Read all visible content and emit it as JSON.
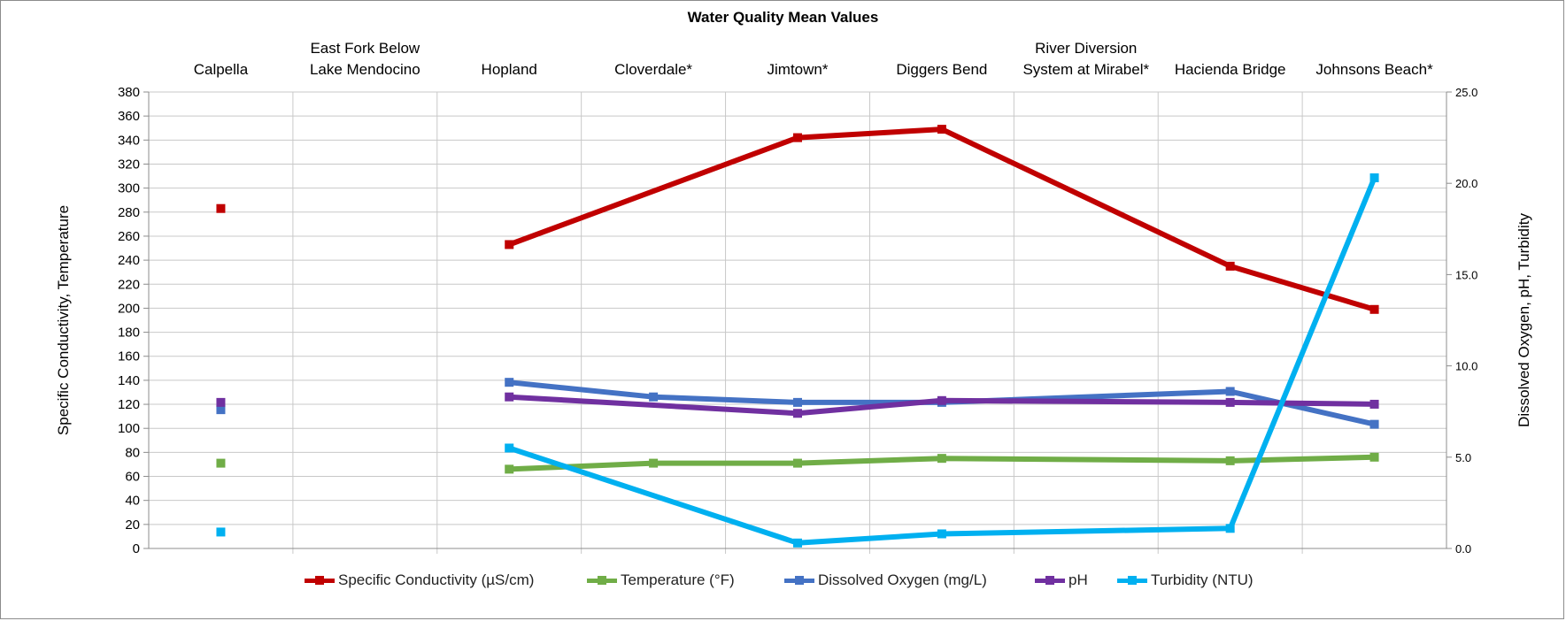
{
  "chart_data": {
    "type": "line",
    "title": "Water Quality Mean Values",
    "ylabel": "Specific Conductivity, Temperature",
    "y2label": "Dissolved Oxygen, pH, Turbidity",
    "ylim": [
      0,
      380
    ],
    "yticks": [
      0,
      20,
      40,
      60,
      80,
      100,
      120,
      140,
      160,
      180,
      200,
      220,
      240,
      260,
      280,
      300,
      320,
      340,
      360,
      380
    ],
    "y2lim": [
      0,
      25
    ],
    "y2ticks": [
      "0.0",
      "5.0",
      "10.0",
      "15.0",
      "20.0",
      "25.0"
    ],
    "grid": true,
    "legend_position": "bottom",
    "categories": [
      [
        "Calpella"
      ],
      [
        "East Fork Below",
        "Lake Mendocino"
      ],
      [
        "Hopland"
      ],
      [
        "Cloverdale*"
      ],
      [
        "Jimtown*"
      ],
      [
        "Diggers Bend"
      ],
      [
        "River Diversion",
        "System at Mirabel*"
      ],
      [
        "Hacienda Bridge"
      ],
      [
        "Johnsons Beach*"
      ]
    ],
    "series": [
      {
        "name": "Specific Conductivity (µS/cm)",
        "axis": "left",
        "color": "#C00000",
        "values": [
          283,
          null,
          253,
          null,
          342,
          349,
          null,
          235,
          199
        ]
      },
      {
        "name": "Temperature  (°F)",
        "axis": "left",
        "color": "#70AD47",
        "values": [
          71,
          null,
          66,
          71,
          71,
          75,
          null,
          73,
          76
        ]
      },
      {
        "name": "Dissolved Oxygen (mg/L)",
        "axis": "right",
        "color": "#4472C4",
        "values": [
          7.6,
          null,
          9.1,
          8.3,
          8.0,
          8.0,
          null,
          8.6,
          6.8
        ]
      },
      {
        "name": "pH",
        "axis": "right",
        "color": "#7030A0",
        "values": [
          8.0,
          null,
          8.3,
          null,
          7.4,
          8.1,
          null,
          8.0,
          7.9
        ]
      },
      {
        "name": "Turbidity (NTU)",
        "axis": "right",
        "color": "#00B0F0",
        "values": [
          0.9,
          null,
          5.5,
          null,
          0.3,
          0.8,
          null,
          1.1,
          20.3
        ]
      }
    ]
  }
}
